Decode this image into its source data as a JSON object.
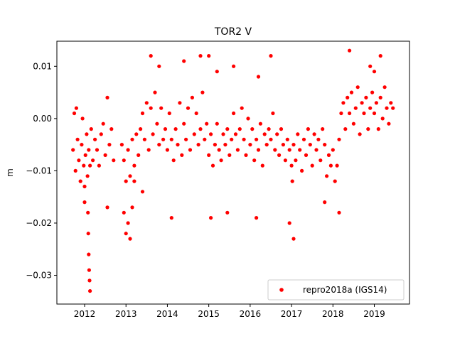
{
  "chart_data": {
    "type": "scatter",
    "title": "TOR2 V",
    "xlabel": "",
    "ylabel": "m",
    "xlim": [
      2011.33,
      2019.85
    ],
    "ylim": [
      -0.0355,
      0.0148
    ],
    "xticks": [
      2012,
      2013,
      2014,
      2015,
      2016,
      2017,
      2018,
      2019
    ],
    "xtick_labels": [
      "2012",
      "2013",
      "2014",
      "2015",
      "2016",
      "2017",
      "2018",
      "2019"
    ],
    "yticks": [
      -0.03,
      -0.02,
      -0.01,
      0.0,
      0.01
    ],
    "ytick_labels": [
      "−0.03",
      "−0.02",
      "−0.01",
      "0.00",
      "0.01"
    ],
    "grid": false,
    "legend_position": "lower-right",
    "series": [
      {
        "name": "repro2018a (IGS14)",
        "color": "#ff0000",
        "marker": "dot",
        "x": [
          2011.72,
          2011.75,
          2011.78,
          2011.8,
          2011.83,
          2011.86,
          2011.9,
          2011.93,
          2011.95,
          2011.98,
          2012.0,
          2012.02,
          2012.05,
          2012.07,
          2012.1,
          2012.13,
          2012.16,
          2012.2,
          2012.25,
          2012.3,
          2012.35,
          2012.4,
          2012.45,
          2012.5,
          2012.55,
          2012.6,
          2012.65,
          2012.7,
          2012.08,
          2012.09,
          2012.1,
          2012.11,
          2012.12,
          2012.13,
          2012.9,
          2012.95,
          2013.0,
          2013.05,
          2013.1,
          2013.15,
          2013.2,
          2013.25,
          2013.3,
          2013.35,
          2013.4,
          2013.45,
          2013.5,
          2013.55,
          2013.6,
          2013.65,
          2013.7,
          2013.75,
          2013.8,
          2013.85,
          2013.9,
          2013.95,
          2012.95,
          2013.0,
          2013.05,
          2013.1,
          2013.15,
          2013.2,
          2014.0,
          2014.05,
          2014.1,
          2014.15,
          2014.2,
          2014.25,
          2014.3,
          2014.35,
          2014.4,
          2014.45,
          2014.5,
          2014.55,
          2014.6,
          2014.65,
          2014.7,
          2014.75,
          2014.8,
          2014.85,
          2014.9,
          2014.95,
          2015.0,
          2015.05,
          2015.1,
          2015.15,
          2015.2,
          2015.25,
          2015.3,
          2015.35,
          2015.4,
          2015.45,
          2015.5,
          2015.55,
          2015.6,
          2015.65,
          2015.7,
          2015.75,
          2015.8,
          2015.85,
          2015.9,
          2015.95,
          2016.0,
          2016.05,
          2016.1,
          2016.15,
          2016.2,
          2016.25,
          2016.3,
          2016.35,
          2016.4,
          2016.45,
          2016.5,
          2016.55,
          2016.6,
          2016.65,
          2016.7,
          2016.75,
          2016.8,
          2016.85,
          2016.9,
          2016.95,
          2017.0,
          2017.02,
          2017.05,
          2017.1,
          2017.15,
          2017.2,
          2017.25,
          2017.3,
          2017.35,
          2017.4,
          2017.45,
          2017.5,
          2017.55,
          2017.6,
          2017.65,
          2017.7,
          2017.75,
          2017.8,
          2017.85,
          2017.9,
          2017.95,
          2018.0,
          2018.05,
          2018.1,
          2018.15,
          2018.2,
          2018.25,
          2018.3,
          2018.35,
          2018.4,
          2018.45,
          2018.5,
          2018.55,
          2018.6,
          2018.65,
          2018.7,
          2018.75,
          2018.8,
          2018.85,
          2018.9,
          2018.95,
          2019.0,
          2019.05,
          2019.1,
          2019.15,
          2019.2,
          2019.25,
          2019.3,
          2019.35,
          2019.4,
          2019.45,
          2013.6,
          2013.8,
          2014.4,
          2014.8,
          2015.0,
          2015.2,
          2015.6,
          2016.2,
          2016.5,
          2017.05,
          2018.4,
          2019.15,
          2019.0,
          2018.9,
          2018.15,
          2017.8,
          2016.95,
          2016.15,
          2015.45,
          2015.05,
          2014.1,
          2013.4,
          2012.55,
          2012.0
        ],
        "y": [
          -0.006,
          0.001,
          -0.01,
          0.002,
          -0.004,
          -0.008,
          -0.012,
          -0.005,
          0.0,
          -0.009,
          -0.013,
          -0.007,
          -0.003,
          -0.011,
          -0.006,
          -0.009,
          -0.002,
          -0.008,
          -0.004,
          -0.006,
          -0.009,
          -0.003,
          -0.001,
          -0.007,
          0.004,
          -0.005,
          -0.002,
          -0.008,
          -0.018,
          -0.022,
          -0.026,
          -0.029,
          -0.031,
          -0.033,
          -0.005,
          -0.008,
          -0.012,
          -0.006,
          -0.011,
          -0.004,
          -0.009,
          -0.003,
          -0.007,
          -0.002,
          0.001,
          -0.004,
          0.003,
          -0.006,
          0.002,
          -0.003,
          0.005,
          -0.001,
          -0.005,
          0.002,
          -0.004,
          -0.002,
          -0.018,
          -0.022,
          -0.02,
          -0.023,
          -0.017,
          -0.012,
          -0.006,
          0.001,
          -0.004,
          -0.008,
          -0.002,
          -0.005,
          0.003,
          -0.007,
          -0.001,
          -0.004,
          0.002,
          -0.006,
          0.004,
          -0.003,
          0.001,
          -0.005,
          -0.002,
          0.005,
          -0.004,
          -0.001,
          -0.007,
          -0.003,
          -0.009,
          -0.005,
          -0.001,
          -0.006,
          -0.008,
          -0.003,
          -0.005,
          -0.002,
          -0.007,
          -0.004,
          0.001,
          -0.003,
          -0.006,
          -0.002,
          0.002,
          -0.004,
          -0.007,
          0.0,
          -0.005,
          -0.002,
          -0.008,
          -0.004,
          -0.006,
          -0.001,
          -0.009,
          -0.003,
          -0.005,
          -0.002,
          -0.004,
          0.001,
          -0.006,
          -0.003,
          -0.007,
          -0.002,
          -0.005,
          -0.008,
          -0.004,
          -0.006,
          -0.009,
          -0.012,
          -0.005,
          -0.008,
          -0.003,
          -0.006,
          -0.01,
          -0.004,
          -0.007,
          -0.002,
          -0.005,
          -0.009,
          -0.003,
          -0.006,
          -0.004,
          -0.008,
          -0.002,
          -0.005,
          -0.011,
          -0.007,
          -0.009,
          -0.006,
          -0.012,
          -0.009,
          -0.004,
          0.001,
          0.003,
          -0.002,
          0.004,
          0.001,
          0.005,
          -0.001,
          0.002,
          0.006,
          -0.003,
          0.003,
          0.001,
          0.004,
          -0.002,
          0.002,
          0.005,
          0.001,
          0.003,
          -0.002,
          0.004,
          0.0,
          0.006,
          0.002,
          -0.001,
          0.003,
          0.002,
          0.012,
          0.01,
          0.011,
          0.012,
          0.012,
          0.009,
          0.01,
          0.008,
          0.012,
          -0.023,
          0.013,
          0.012,
          0.009,
          0.01,
          -0.018,
          -0.016,
          -0.02,
          -0.019,
          -0.018,
          -0.019,
          -0.019,
          -0.014,
          -0.017,
          -0.016
        ]
      }
    ]
  }
}
